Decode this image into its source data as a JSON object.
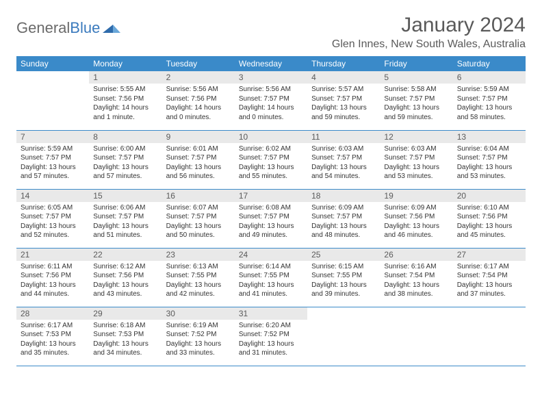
{
  "logo": {
    "word1": "General",
    "word2": "Blue"
  },
  "title": "January 2024",
  "location": "Glen Innes, New South Wales, Australia",
  "colors": {
    "header_bg": "#3a8ac9",
    "header_text": "#ffffff",
    "daynum_bg": "#e9e9e9",
    "daynum_text": "#5a5a5a",
    "body_text": "#333333",
    "rule": "#3a8ac9",
    "logo_gray": "#6a6a6a",
    "logo_blue": "#3a7abd"
  },
  "day_names": [
    "Sunday",
    "Monday",
    "Tuesday",
    "Wednesday",
    "Thursday",
    "Friday",
    "Saturday"
  ],
  "weeks": [
    [
      null,
      {
        "n": "1",
        "sunrise": "Sunrise: 5:55 AM",
        "sunset": "Sunset: 7:56 PM",
        "dl1": "Daylight: 14 hours",
        "dl2": "and 1 minute."
      },
      {
        "n": "2",
        "sunrise": "Sunrise: 5:56 AM",
        "sunset": "Sunset: 7:56 PM",
        "dl1": "Daylight: 14 hours",
        "dl2": "and 0 minutes."
      },
      {
        "n": "3",
        "sunrise": "Sunrise: 5:56 AM",
        "sunset": "Sunset: 7:57 PM",
        "dl1": "Daylight: 14 hours",
        "dl2": "and 0 minutes."
      },
      {
        "n": "4",
        "sunrise": "Sunrise: 5:57 AM",
        "sunset": "Sunset: 7:57 PM",
        "dl1": "Daylight: 13 hours",
        "dl2": "and 59 minutes."
      },
      {
        "n": "5",
        "sunrise": "Sunrise: 5:58 AM",
        "sunset": "Sunset: 7:57 PM",
        "dl1": "Daylight: 13 hours",
        "dl2": "and 59 minutes."
      },
      {
        "n": "6",
        "sunrise": "Sunrise: 5:59 AM",
        "sunset": "Sunset: 7:57 PM",
        "dl1": "Daylight: 13 hours",
        "dl2": "and 58 minutes."
      }
    ],
    [
      {
        "n": "7",
        "sunrise": "Sunrise: 5:59 AM",
        "sunset": "Sunset: 7:57 PM",
        "dl1": "Daylight: 13 hours",
        "dl2": "and 57 minutes."
      },
      {
        "n": "8",
        "sunrise": "Sunrise: 6:00 AM",
        "sunset": "Sunset: 7:57 PM",
        "dl1": "Daylight: 13 hours",
        "dl2": "and 57 minutes."
      },
      {
        "n": "9",
        "sunrise": "Sunrise: 6:01 AM",
        "sunset": "Sunset: 7:57 PM",
        "dl1": "Daylight: 13 hours",
        "dl2": "and 56 minutes."
      },
      {
        "n": "10",
        "sunrise": "Sunrise: 6:02 AM",
        "sunset": "Sunset: 7:57 PM",
        "dl1": "Daylight: 13 hours",
        "dl2": "and 55 minutes."
      },
      {
        "n": "11",
        "sunrise": "Sunrise: 6:03 AM",
        "sunset": "Sunset: 7:57 PM",
        "dl1": "Daylight: 13 hours",
        "dl2": "and 54 minutes."
      },
      {
        "n": "12",
        "sunrise": "Sunrise: 6:03 AM",
        "sunset": "Sunset: 7:57 PM",
        "dl1": "Daylight: 13 hours",
        "dl2": "and 53 minutes."
      },
      {
        "n": "13",
        "sunrise": "Sunrise: 6:04 AM",
        "sunset": "Sunset: 7:57 PM",
        "dl1": "Daylight: 13 hours",
        "dl2": "and 53 minutes."
      }
    ],
    [
      {
        "n": "14",
        "sunrise": "Sunrise: 6:05 AM",
        "sunset": "Sunset: 7:57 PM",
        "dl1": "Daylight: 13 hours",
        "dl2": "and 52 minutes."
      },
      {
        "n": "15",
        "sunrise": "Sunrise: 6:06 AM",
        "sunset": "Sunset: 7:57 PM",
        "dl1": "Daylight: 13 hours",
        "dl2": "and 51 minutes."
      },
      {
        "n": "16",
        "sunrise": "Sunrise: 6:07 AM",
        "sunset": "Sunset: 7:57 PM",
        "dl1": "Daylight: 13 hours",
        "dl2": "and 50 minutes."
      },
      {
        "n": "17",
        "sunrise": "Sunrise: 6:08 AM",
        "sunset": "Sunset: 7:57 PM",
        "dl1": "Daylight: 13 hours",
        "dl2": "and 49 minutes."
      },
      {
        "n": "18",
        "sunrise": "Sunrise: 6:09 AM",
        "sunset": "Sunset: 7:57 PM",
        "dl1": "Daylight: 13 hours",
        "dl2": "and 48 minutes."
      },
      {
        "n": "19",
        "sunrise": "Sunrise: 6:09 AM",
        "sunset": "Sunset: 7:56 PM",
        "dl1": "Daylight: 13 hours",
        "dl2": "and 46 minutes."
      },
      {
        "n": "20",
        "sunrise": "Sunrise: 6:10 AM",
        "sunset": "Sunset: 7:56 PM",
        "dl1": "Daylight: 13 hours",
        "dl2": "and 45 minutes."
      }
    ],
    [
      {
        "n": "21",
        "sunrise": "Sunrise: 6:11 AM",
        "sunset": "Sunset: 7:56 PM",
        "dl1": "Daylight: 13 hours",
        "dl2": "and 44 minutes."
      },
      {
        "n": "22",
        "sunrise": "Sunrise: 6:12 AM",
        "sunset": "Sunset: 7:56 PM",
        "dl1": "Daylight: 13 hours",
        "dl2": "and 43 minutes."
      },
      {
        "n": "23",
        "sunrise": "Sunrise: 6:13 AM",
        "sunset": "Sunset: 7:55 PM",
        "dl1": "Daylight: 13 hours",
        "dl2": "and 42 minutes."
      },
      {
        "n": "24",
        "sunrise": "Sunrise: 6:14 AM",
        "sunset": "Sunset: 7:55 PM",
        "dl1": "Daylight: 13 hours",
        "dl2": "and 41 minutes."
      },
      {
        "n": "25",
        "sunrise": "Sunrise: 6:15 AM",
        "sunset": "Sunset: 7:55 PM",
        "dl1": "Daylight: 13 hours",
        "dl2": "and 39 minutes."
      },
      {
        "n": "26",
        "sunrise": "Sunrise: 6:16 AM",
        "sunset": "Sunset: 7:54 PM",
        "dl1": "Daylight: 13 hours",
        "dl2": "and 38 minutes."
      },
      {
        "n": "27",
        "sunrise": "Sunrise: 6:17 AM",
        "sunset": "Sunset: 7:54 PM",
        "dl1": "Daylight: 13 hours",
        "dl2": "and 37 minutes."
      }
    ],
    [
      {
        "n": "28",
        "sunrise": "Sunrise: 6:17 AM",
        "sunset": "Sunset: 7:53 PM",
        "dl1": "Daylight: 13 hours",
        "dl2": "and 35 minutes."
      },
      {
        "n": "29",
        "sunrise": "Sunrise: 6:18 AM",
        "sunset": "Sunset: 7:53 PM",
        "dl1": "Daylight: 13 hours",
        "dl2": "and 34 minutes."
      },
      {
        "n": "30",
        "sunrise": "Sunrise: 6:19 AM",
        "sunset": "Sunset: 7:52 PM",
        "dl1": "Daylight: 13 hours",
        "dl2": "and 33 minutes."
      },
      {
        "n": "31",
        "sunrise": "Sunrise: 6:20 AM",
        "sunset": "Sunset: 7:52 PM",
        "dl1": "Daylight: 13 hours",
        "dl2": "and 31 minutes."
      },
      null,
      null,
      null
    ]
  ]
}
